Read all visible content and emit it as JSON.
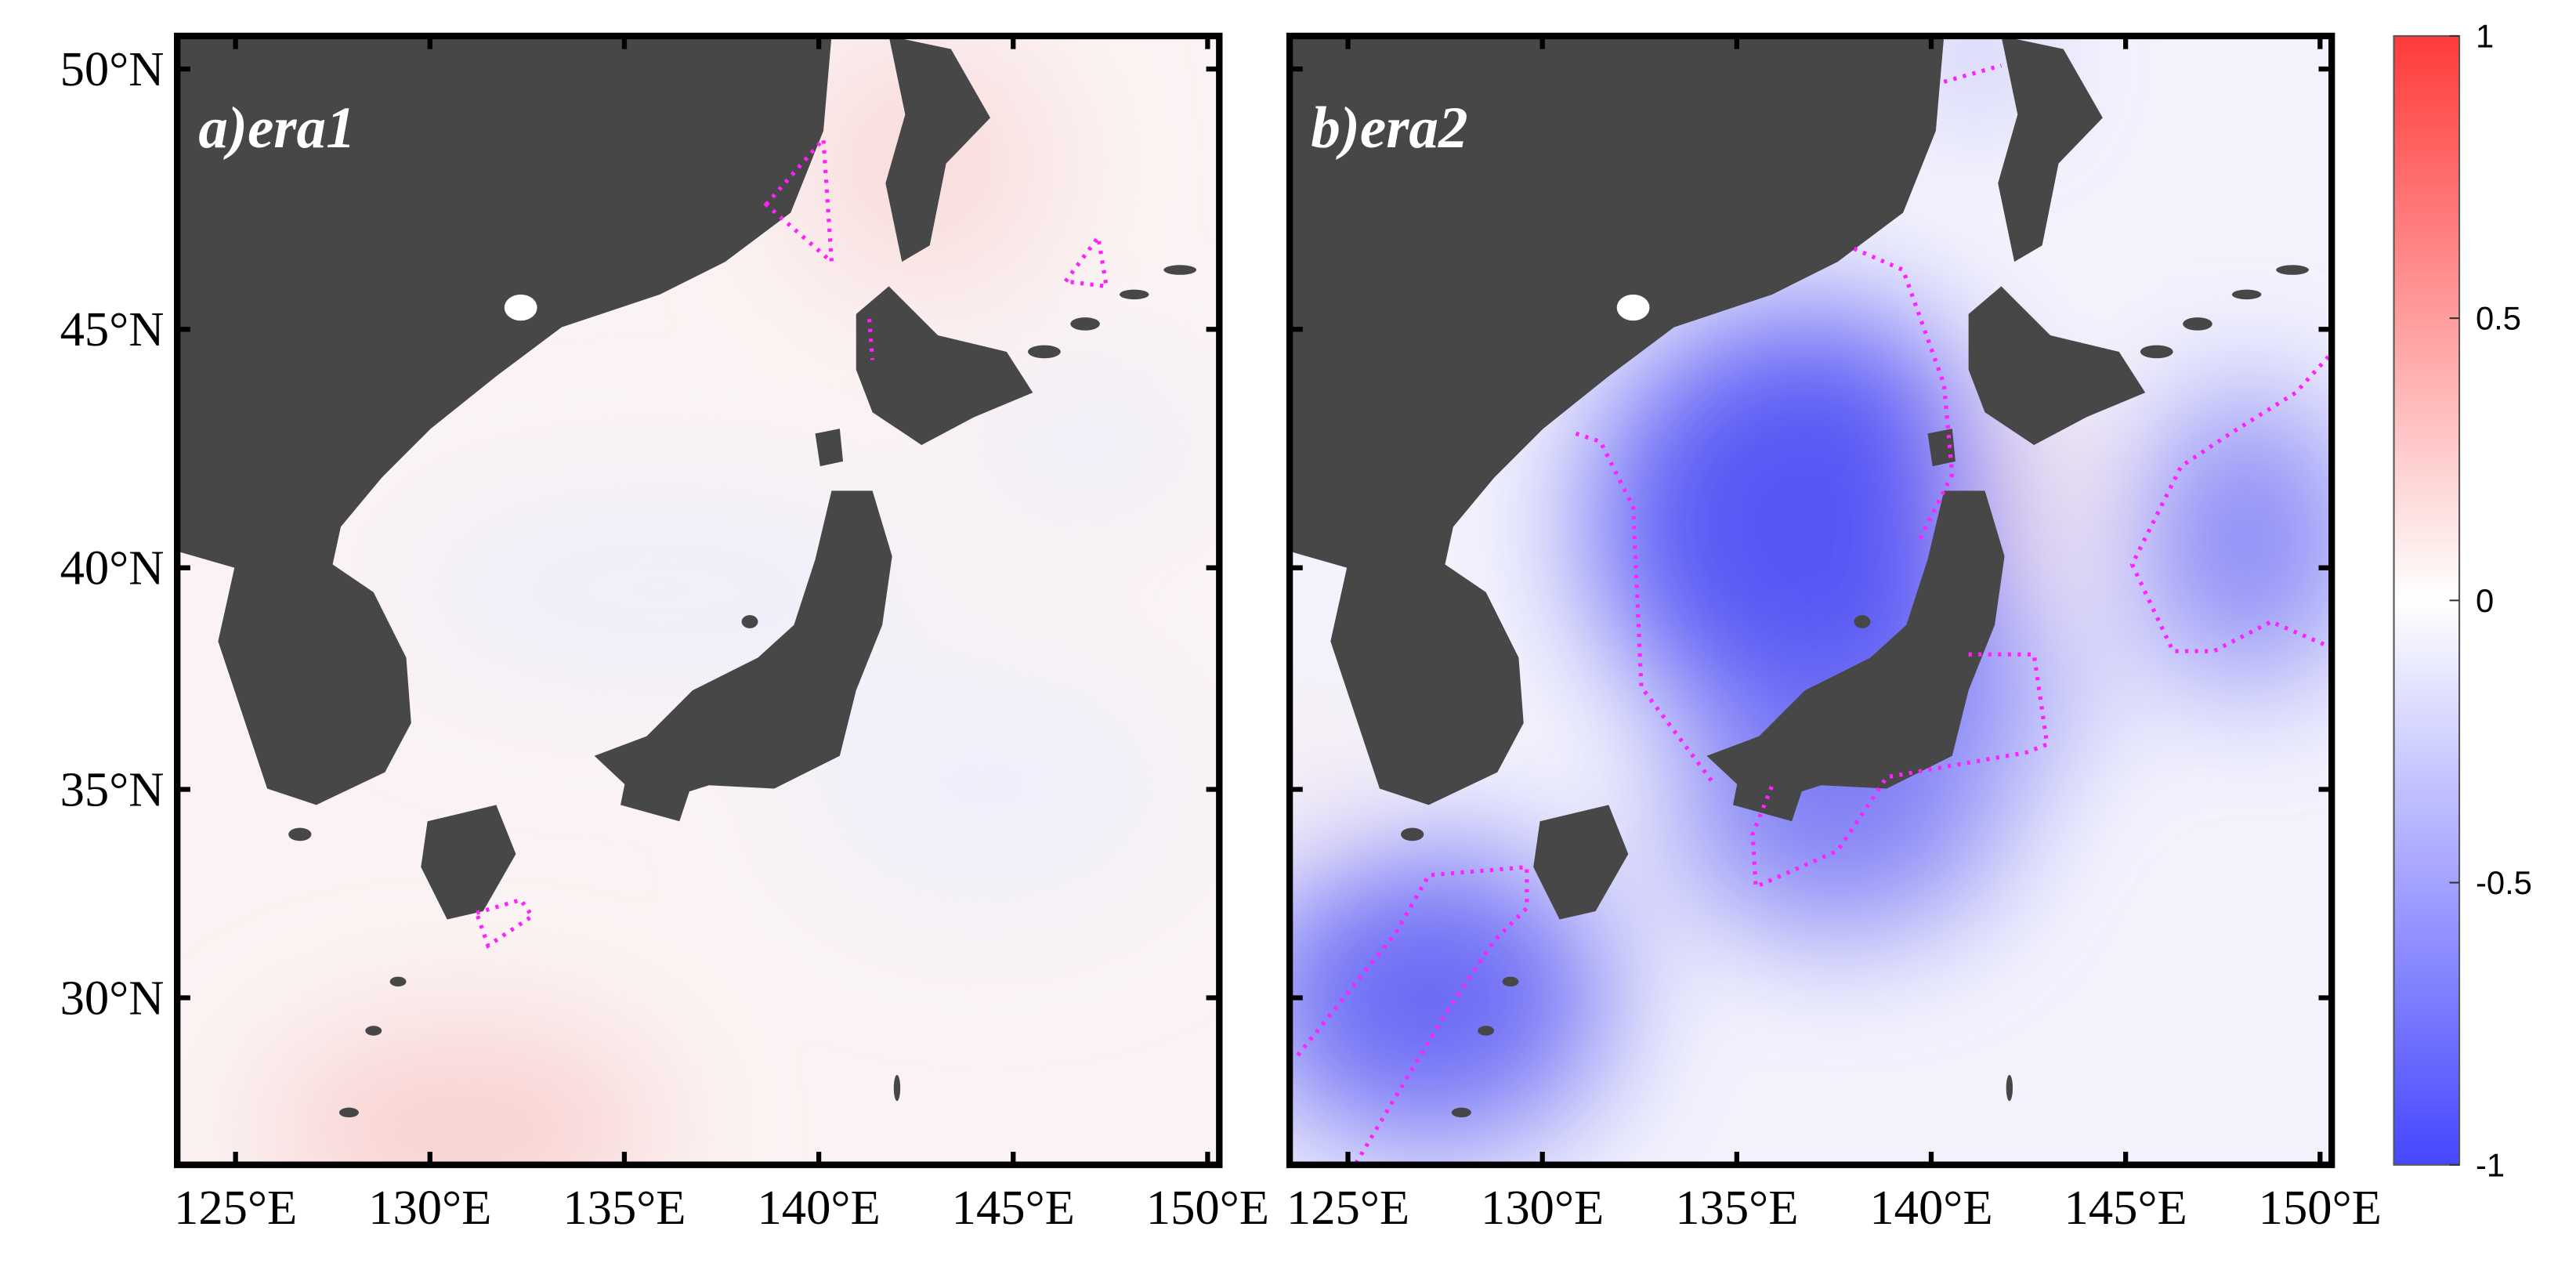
{
  "panels": [
    {
      "label": "a)era1"
    },
    {
      "label": "b)era2"
    }
  ],
  "lon_lim": [
    123.5,
    150.3
  ],
  "lat_lim": [
    25.8,
    50.6
  ],
  "x_axis": {
    "ticks": [
      {
        "value": 125,
        "label": "125°E"
      },
      {
        "value": 130,
        "label": "130°E"
      },
      {
        "value": 135,
        "label": "135°E"
      },
      {
        "value": 140,
        "label": "140°E"
      },
      {
        "value": 145,
        "label": "145°E"
      },
      {
        "value": 150,
        "label": "150°E"
      }
    ]
  },
  "y_axis": {
    "ticks": [
      {
        "value": 30,
        "label": "30°N"
      },
      {
        "value": 35,
        "label": "35°N"
      },
      {
        "value": 40,
        "label": "40°N"
      },
      {
        "value": 45,
        "label": "45°N"
      },
      {
        "value": 50,
        "label": "50°N"
      }
    ]
  },
  "colorbar": {
    "lim": [
      -1,
      1
    ],
    "ticks": [
      1,
      0.5,
      0,
      -0.5,
      -1
    ]
  }
}
